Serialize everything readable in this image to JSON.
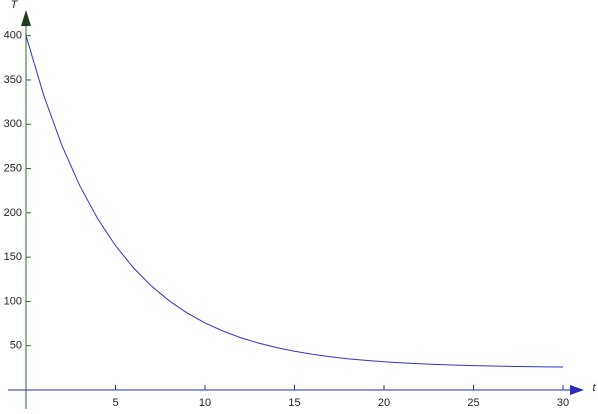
{
  "chart_data": {
    "type": "line",
    "x_label": "t",
    "y_label": "T",
    "x": [
      0,
      1,
      2,
      3,
      4,
      5,
      6,
      7,
      8,
      9,
      10,
      11,
      12,
      13,
      14,
      15,
      16,
      17,
      18,
      19,
      20,
      21,
      22,
      23,
      24,
      25,
      26,
      27,
      28,
      29,
      30
    ],
    "series": [
      {
        "color": "#3333cc",
        "values": [
          400,
          332.0,
          276.4,
          230.8,
          193.5,
          163.0,
          138.0,
          117.5,
          100.7,
          87.0,
          75.7,
          66.6,
          59.0,
          52.9,
          47.8,
          43.7,
          40.3,
          37.5,
          35.2,
          33.4,
          31.9,
          30.6,
          29.6,
          28.8,
          28.1,
          27.5,
          27.1,
          26.7,
          26.4,
          26.1,
          25.9
        ]
      }
    ],
    "xlim": [
      0,
      30
    ],
    "ylim": [
      0,
      429
    ],
    "xticks": [
      5,
      10,
      15,
      20,
      25,
      30
    ],
    "yticks": [
      50,
      100,
      150,
      200,
      250,
      300,
      350,
      400
    ]
  }
}
